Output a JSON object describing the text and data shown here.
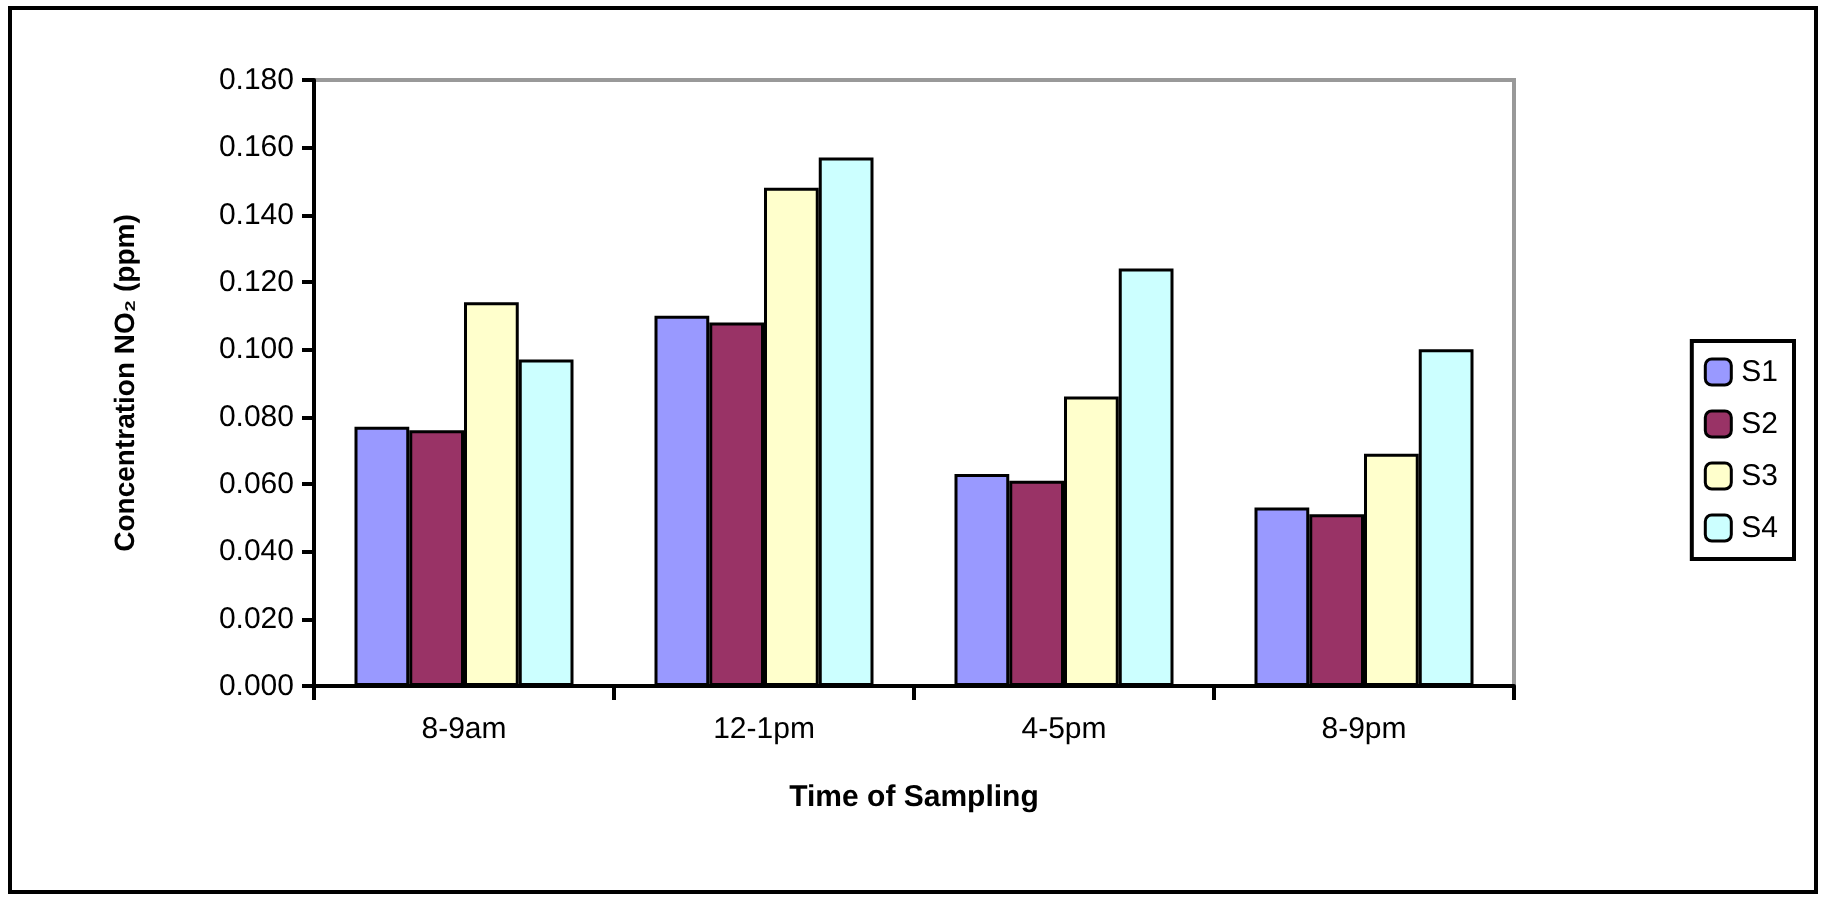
{
  "chart_data": {
    "type": "bar",
    "xlabel": "Time of Sampling",
    "ylabel": "Concentration NO₂ (ppm)",
    "categories": [
      "8-9am",
      "12-1pm",
      "4-5pm",
      "8-9pm"
    ],
    "series": [
      {
        "name": "S1",
        "color": "#9999ff",
        "values": [
          0.077,
          0.11,
          0.063,
          0.053
        ]
      },
      {
        "name": "S2",
        "color": "#993366",
        "values": [
          0.076,
          0.108,
          0.061,
          0.051
        ]
      },
      {
        "name": "S3",
        "color": "#ffffcc",
        "values": [
          0.114,
          0.148,
          0.086,
          0.069
        ]
      },
      {
        "name": "S4",
        "color": "#ccffff",
        "values": [
          0.097,
          0.157,
          0.124,
          0.1
        ]
      }
    ],
    "ylim": [
      0,
      0.18
    ],
    "yticks": [
      {
        "value": 0,
        "label": "0.000"
      },
      {
        "value": 0.02,
        "label": "0.020"
      },
      {
        "value": 0.04,
        "label": "0.040"
      },
      {
        "value": 0.06,
        "label": "0.060"
      },
      {
        "value": 0.08,
        "label": "0.080"
      },
      {
        "value": 0.1,
        "label": "0.100"
      },
      {
        "value": 0.12,
        "label": "0.120"
      },
      {
        "value": 0.14,
        "label": "0.140"
      },
      {
        "value": 0.16,
        "label": "0.160"
      },
      {
        "value": 0.18,
        "label": "0.180"
      }
    ],
    "grid": false,
    "legend": "right"
  }
}
